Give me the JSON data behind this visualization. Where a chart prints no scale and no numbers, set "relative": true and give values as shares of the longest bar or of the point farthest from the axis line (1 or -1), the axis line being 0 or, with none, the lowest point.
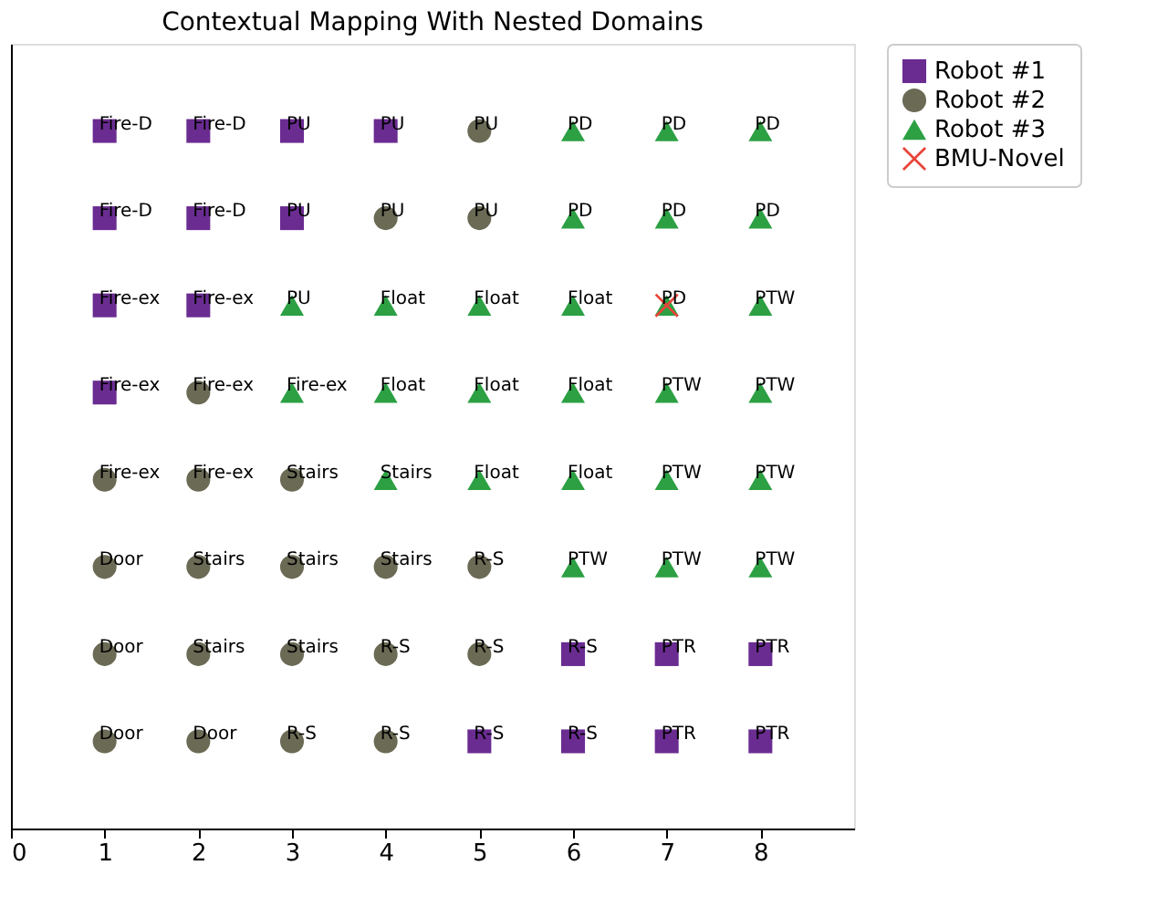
{
  "chart_data": {
    "type": "scatter",
    "title": "Contextual Mapping With Nested Domains",
    "xlim": [
      0,
      9
    ],
    "xticks": [
      0,
      1,
      2,
      3,
      4,
      5,
      6,
      7,
      8
    ],
    "relative": true,
    "grid": false,
    "legend": "right",
    "series": [
      {
        "name": "Robot #1",
        "color": "#6a2c91",
        "marker": "square",
        "x": [
          1,
          2,
          3,
          4,
          1,
          2,
          3,
          1,
          2,
          1,
          6,
          7,
          8,
          5,
          6,
          7,
          8
        ],
        "values": [
          1,
          1,
          1,
          1,
          0.875,
          0.875,
          0.875,
          0.75,
          0.75,
          0.625,
          0.25,
          0.25,
          0.25,
          0.125,
          0.125,
          0.125,
          0.125
        ]
      },
      {
        "name": "Robot #2",
        "color": "#6b6a55",
        "marker": "circle",
        "x": [
          5,
          4,
          5,
          2,
          1,
          2,
          3,
          1,
          2,
          3,
          4,
          5,
          1,
          2,
          3,
          4,
          5,
          1,
          2,
          3,
          4
        ],
        "values": [
          1,
          0.875,
          0.875,
          0.625,
          0.5,
          0.5,
          0.5,
          0.375,
          0.375,
          0.375,
          0.375,
          0.375,
          0.25,
          0.25,
          0.25,
          0.25,
          0.25,
          0.125,
          0.125,
          0.125,
          0.125
        ]
      },
      {
        "name": "Robot #3",
        "color": "#2ca043",
        "marker": "triangle",
        "x": [
          6,
          7,
          8,
          6,
          7,
          8,
          3,
          4,
          5,
          6,
          7,
          8,
          3,
          4,
          5,
          6,
          7,
          8,
          4,
          5,
          6,
          7,
          8,
          6,
          7,
          8
        ],
        "values": [
          1,
          1,
          1,
          0.875,
          0.875,
          0.875,
          0.75,
          0.75,
          0.75,
          0.75,
          0.75,
          0.75,
          0.625,
          0.625,
          0.625,
          0.625,
          0.625,
          0.625,
          0.5,
          0.5,
          0.5,
          0.5,
          0.5,
          0.375,
          0.375,
          0.375
        ]
      },
      {
        "name": "BMU-Novel",
        "color": "#e8443a",
        "marker": "cross",
        "x": [
          7
        ],
        "values": [
          0.75
        ]
      }
    ],
    "annotations": [
      {
        "text": "Fire-D",
        "x": 1,
        "y": 1
      },
      {
        "text": "Fire-D",
        "x": 2,
        "y": 1
      },
      {
        "text": "PU",
        "x": 3,
        "y": 1
      },
      {
        "text": "PU",
        "x": 4,
        "y": 1
      },
      {
        "text": "PU",
        "x": 5,
        "y": 1
      },
      {
        "text": "PD",
        "x": 6,
        "y": 1
      },
      {
        "text": "PD",
        "x": 7,
        "y": 1
      },
      {
        "text": "PD",
        "x": 8,
        "y": 1
      },
      {
        "text": "Fire-D",
        "x": 1,
        "y": 0.875
      },
      {
        "text": "Fire-D",
        "x": 2,
        "y": 0.875
      },
      {
        "text": "PU",
        "x": 3,
        "y": 0.875
      },
      {
        "text": "PU",
        "x": 4,
        "y": 0.875
      },
      {
        "text": "PU",
        "x": 5,
        "y": 0.875
      },
      {
        "text": "PD",
        "x": 6,
        "y": 0.875
      },
      {
        "text": "PD",
        "x": 7,
        "y": 0.875
      },
      {
        "text": "PD",
        "x": 8,
        "y": 0.875
      },
      {
        "text": "Fire-ex",
        "x": 1,
        "y": 0.75
      },
      {
        "text": "Fire-ex",
        "x": 2,
        "y": 0.75
      },
      {
        "text": "PU",
        "x": 3,
        "y": 0.75
      },
      {
        "text": "Float",
        "x": 4,
        "y": 0.75
      },
      {
        "text": "Float",
        "x": 5,
        "y": 0.75
      },
      {
        "text": "Float",
        "x": 6,
        "y": 0.75
      },
      {
        "text": "PD",
        "x": 7,
        "y": 0.75
      },
      {
        "text": "PTW",
        "x": 8,
        "y": 0.75
      },
      {
        "text": "Fire-ex",
        "x": 1,
        "y": 0.625
      },
      {
        "text": "Fire-ex",
        "x": 2,
        "y": 0.625
      },
      {
        "text": "Fire-ex",
        "x": 3,
        "y": 0.625
      },
      {
        "text": "Float",
        "x": 4,
        "y": 0.625
      },
      {
        "text": "Float",
        "x": 5,
        "y": 0.625
      },
      {
        "text": "Float",
        "x": 6,
        "y": 0.625
      },
      {
        "text": "PTW",
        "x": 7,
        "y": 0.625
      },
      {
        "text": "PTW",
        "x": 8,
        "y": 0.625
      },
      {
        "text": "Fire-ex",
        "x": 1,
        "y": 0.5
      },
      {
        "text": "Fire-ex",
        "x": 2,
        "y": 0.5
      },
      {
        "text": "Stairs",
        "x": 3,
        "y": 0.5
      },
      {
        "text": "Stairs",
        "x": 4,
        "y": 0.5
      },
      {
        "text": "Float",
        "x": 5,
        "y": 0.5
      },
      {
        "text": "Float",
        "x": 6,
        "y": 0.5
      },
      {
        "text": "PTW",
        "x": 7,
        "y": 0.5
      },
      {
        "text": "PTW",
        "x": 8,
        "y": 0.5
      },
      {
        "text": "Door",
        "x": 1,
        "y": 0.375
      },
      {
        "text": "Stairs",
        "x": 2,
        "y": 0.375
      },
      {
        "text": "Stairs",
        "x": 3,
        "y": 0.375
      },
      {
        "text": "Stairs",
        "x": 4,
        "y": 0.375
      },
      {
        "text": "R-S",
        "x": 5,
        "y": 0.375
      },
      {
        "text": "PTW",
        "x": 6,
        "y": 0.375
      },
      {
        "text": "PTW",
        "x": 7,
        "y": 0.375
      },
      {
        "text": "PTW",
        "x": 8,
        "y": 0.375
      },
      {
        "text": "Door",
        "x": 1,
        "y": 0.25
      },
      {
        "text": "Stairs",
        "x": 2,
        "y": 0.25
      },
      {
        "text": "Stairs",
        "x": 3,
        "y": 0.25
      },
      {
        "text": "R-S",
        "x": 4,
        "y": 0.25
      },
      {
        "text": "R-S",
        "x": 5,
        "y": 0.25
      },
      {
        "text": "R-S",
        "x": 6,
        "y": 0.25
      },
      {
        "text": "PTR",
        "x": 7,
        "y": 0.25
      },
      {
        "text": "PTR",
        "x": 8,
        "y": 0.25
      },
      {
        "text": "Door",
        "x": 1,
        "y": 0.125
      },
      {
        "text": "Door",
        "x": 2,
        "y": 0.125
      },
      {
        "text": "R-S",
        "x": 3,
        "y": 0.125
      },
      {
        "text": "R-S",
        "x": 4,
        "y": 0.125
      },
      {
        "text": "R-S",
        "x": 5,
        "y": 0.125
      },
      {
        "text": "R-S",
        "x": 6,
        "y": 0.125
      },
      {
        "text": "PTR",
        "x": 7,
        "y": 0.125
      },
      {
        "text": "PTR",
        "x": 8,
        "y": 0.125
      }
    ]
  }
}
